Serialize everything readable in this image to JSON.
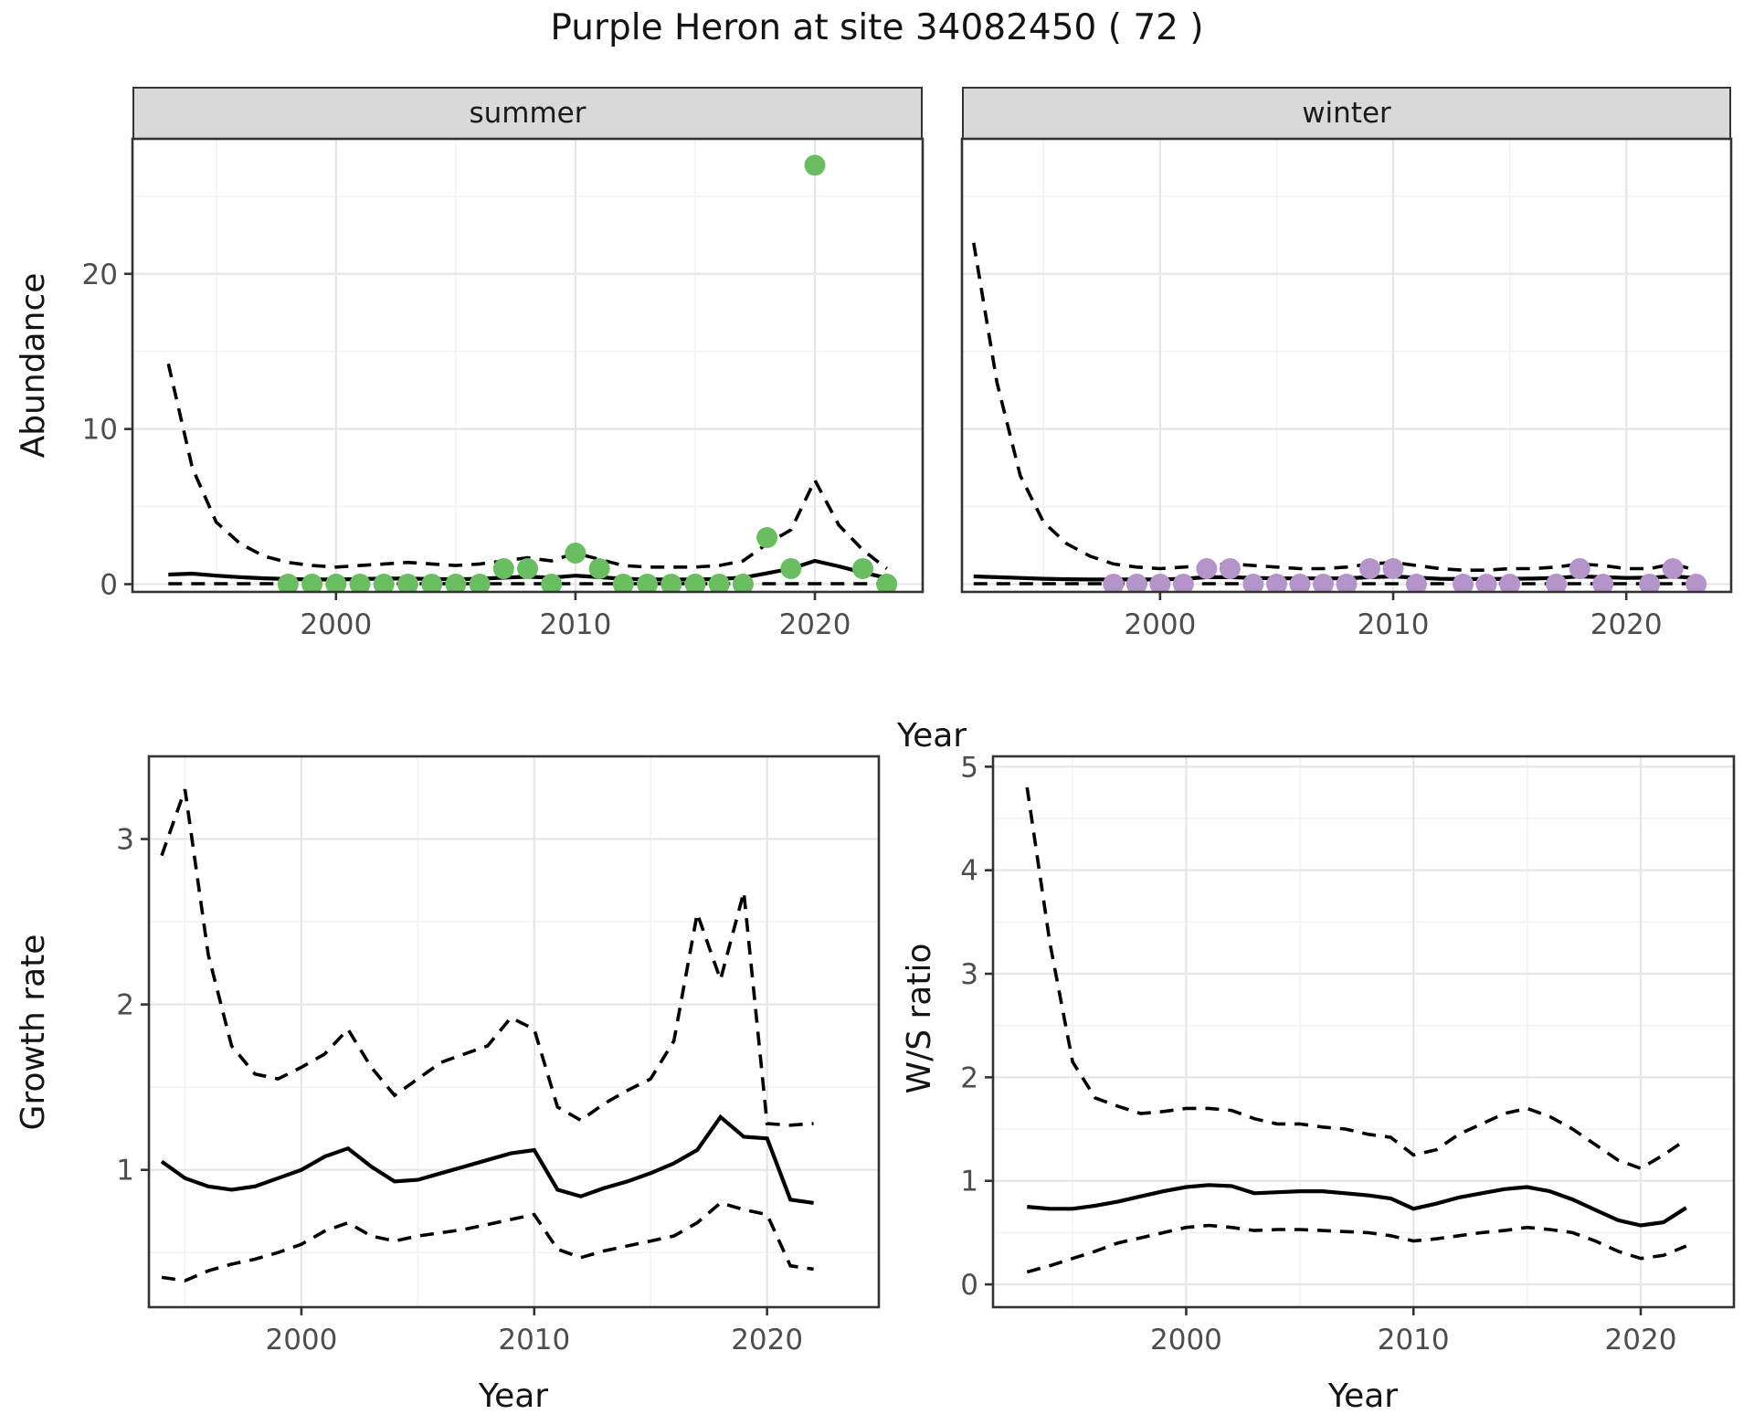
{
  "title": "Purple Heron at site 34082450 ( 72 )",
  "facets": {
    "summer": "summer",
    "winter": "winter"
  },
  "axis_titles": {
    "abundance": "Abundance",
    "growth": "Growth rate",
    "ws": "W/S ratio",
    "year": "Year"
  },
  "colors": {
    "summer_point": "#6abe61",
    "winter_point": "#b594ca",
    "line": "#000000",
    "strip_bg": "#d9d9d9",
    "panel_border": "#333333",
    "grid_major": "#e6e6e6",
    "grid_minor": "#f2f2f2",
    "tick_label": "#4d4d4d",
    "text": "#141414"
  },
  "chart_data": [
    {
      "type": "line",
      "title": "Purple Heron at site 34082450 ( 72 )",
      "xlabel": "Year",
      "ylabel": "Abundance",
      "legend_position": "none",
      "grid": true,
      "xlim": [
        1991.5,
        2024.5
      ],
      "ylim": [
        -0.5,
        28.7
      ],
      "xticks": [
        2000,
        2010,
        2020
      ],
      "xticks_minor": [
        1995,
        2005,
        2015
      ],
      "yticks": [
        0,
        10,
        20
      ],
      "yticks_minor": [
        5,
        15,
        25
      ],
      "series_styles": {
        "mean": "solid",
        "upper_ci": "dashed",
        "lower_ci": "dashed"
      },
      "facets": [
        {
          "label": "summer",
          "point_color": "#6abe61",
          "line_x": [
            1993,
            1994,
            1995,
            1996,
            1997,
            1998,
            1999,
            2000,
            2001,
            2002,
            2003,
            2004,
            2005,
            2006,
            2007,
            2008,
            2009,
            2010,
            2011,
            2012,
            2013,
            2014,
            2015,
            2016,
            2017,
            2018,
            2019,
            2020,
            2021,
            2022,
            2023
          ],
          "upper_ci": [
            14.2,
            7.5,
            4.0,
            2.6,
            1.8,
            1.4,
            1.2,
            1.1,
            1.2,
            1.3,
            1.4,
            1.3,
            1.2,
            1.3,
            1.5,
            1.7,
            1.5,
            2.0,
            1.6,
            1.2,
            1.1,
            1.1,
            1.1,
            1.2,
            1.5,
            2.6,
            3.5,
            6.7,
            3.8,
            2.2,
            1.0
          ],
          "mean": [
            0.62,
            0.68,
            0.55,
            0.45,
            0.38,
            0.33,
            0.3,
            0.3,
            0.33,
            0.36,
            0.36,
            0.33,
            0.32,
            0.35,
            0.42,
            0.48,
            0.42,
            0.55,
            0.45,
            0.35,
            0.3,
            0.3,
            0.3,
            0.33,
            0.42,
            0.7,
            1.0,
            1.5,
            1.15,
            0.75,
            0.4
          ],
          "lower_ci": [
            0.03,
            0.03,
            0.03,
            0.03,
            0.03,
            0.03,
            0.03,
            0.03,
            0.03,
            0.03,
            0.03,
            0.03,
            0.03,
            0.03,
            0.03,
            0.03,
            0.03,
            0.03,
            0.03,
            0.03,
            0.03,
            0.03,
            0.03,
            0.03,
            0.03,
            0.03,
            0.03,
            0.03,
            0.03,
            0.03,
            0.03
          ],
          "points_x": [
            1998,
            1999,
            2000,
            2001,
            2002,
            2003,
            2004,
            2005,
            2006,
            2007,
            2008,
            2009,
            2010,
            2011,
            2012,
            2013,
            2014,
            2015,
            2016,
            2017,
            2018,
            2019,
            2020,
            2022,
            2023
          ],
          "points_y": [
            0,
            0,
            0,
            0,
            0,
            0,
            0,
            0,
            0,
            1,
            1,
            0,
            2,
            1,
            0,
            0,
            0,
            0,
            0,
            0,
            3,
            1,
            27,
            1,
            0
          ]
        },
        {
          "label": "winter",
          "point_color": "#b594ca",
          "line_x": [
            1992,
            1993,
            1994,
            1995,
            1996,
            1997,
            1998,
            1999,
            2000,
            2001,
            2002,
            2003,
            2004,
            2005,
            2006,
            2007,
            2008,
            2009,
            2010,
            2011,
            2012,
            2013,
            2014,
            2015,
            2016,
            2017,
            2018,
            2019,
            2020,
            2021,
            2022,
            2023
          ],
          "upper_ci": [
            22.0,
            13.0,
            7.0,
            4.0,
            2.6,
            1.8,
            1.3,
            1.1,
            1.0,
            1.1,
            1.2,
            1.3,
            1.2,
            1.1,
            1.0,
            1.0,
            1.1,
            1.3,
            1.4,
            1.2,
            1.0,
            0.9,
            0.9,
            1.0,
            1.0,
            1.1,
            1.3,
            1.2,
            1.0,
            1.0,
            1.3,
            0.9
          ],
          "mean": [
            0.5,
            0.45,
            0.4,
            0.35,
            0.32,
            0.3,
            0.3,
            0.3,
            0.3,
            0.35,
            0.45,
            0.45,
            0.4,
            0.38,
            0.37,
            0.37,
            0.38,
            0.45,
            0.5,
            0.42,
            0.35,
            0.33,
            0.33,
            0.35,
            0.36,
            0.4,
            0.5,
            0.45,
            0.4,
            0.42,
            0.5,
            0.4
          ],
          "lower_ci": [
            0.03,
            0.03,
            0.03,
            0.03,
            0.03,
            0.03,
            0.03,
            0.03,
            0.03,
            0.03,
            0.03,
            0.03,
            0.03,
            0.03,
            0.03,
            0.03,
            0.03,
            0.03,
            0.03,
            0.03,
            0.03,
            0.03,
            0.03,
            0.03,
            0.03,
            0.03,
            0.03,
            0.03,
            0.03,
            0.03,
            0.03,
            0.03
          ],
          "points_x": [
            1998,
            1999,
            2000,
            2001,
            2002,
            2003,
            2004,
            2005,
            2006,
            2007,
            2008,
            2009,
            2010,
            2011,
            2013,
            2014,
            2015,
            2017,
            2018,
            2019,
            2021,
            2022,
            2023
          ],
          "points_y": [
            0,
            0,
            0,
            0,
            1,
            1,
            0,
            0,
            0,
            0,
            0,
            1,
            1,
            0,
            0,
            0,
            0,
            0,
            1,
            0,
            0,
            1,
            0
          ]
        }
      ]
    },
    {
      "type": "line",
      "xlabel": "Year",
      "ylabel": "Growth rate",
      "legend_position": "none",
      "grid": true,
      "xlim": [
        1993.45,
        2024.8
      ],
      "ylim": [
        0.17,
        3.5
      ],
      "xticks": [
        2000,
        2010,
        2020
      ],
      "xticks_minor": [
        1995,
        2005,
        2015
      ],
      "yticks": [
        1,
        2,
        3
      ],
      "yticks_minor": [
        0.5,
        1.5,
        2.5
      ],
      "x": [
        1994,
        1995,
        1996,
        1997,
        1998,
        1999,
        2000,
        2001,
        2002,
        2003,
        2004,
        2005,
        2006,
        2007,
        2008,
        2009,
        2010,
        2011,
        2012,
        2013,
        2014,
        2015,
        2016,
        2017,
        2018,
        2019,
        2020,
        2021,
        2022
      ],
      "series": [
        {
          "name": "upper_ci",
          "style": "dashed",
          "values": [
            2.9,
            3.3,
            2.3,
            1.75,
            1.58,
            1.55,
            1.62,
            1.7,
            1.85,
            1.62,
            1.45,
            1.55,
            1.65,
            1.7,
            1.75,
            1.92,
            1.85,
            1.38,
            1.3,
            1.4,
            1.48,
            1.55,
            1.78,
            2.55,
            2.15,
            2.68,
            1.28,
            1.27,
            1.28
          ]
        },
        {
          "name": "mean",
          "style": "solid",
          "values": [
            1.05,
            0.95,
            0.9,
            0.88,
            0.9,
            0.95,
            1.0,
            1.08,
            1.13,
            1.02,
            0.93,
            0.94,
            0.98,
            1.02,
            1.06,
            1.1,
            1.12,
            0.88,
            0.84,
            0.89,
            0.93,
            0.98,
            1.04,
            1.12,
            1.32,
            1.2,
            1.19,
            0.82,
            0.8
          ]
        },
        {
          "name": "lower_ci",
          "style": "dashed",
          "values": [
            0.35,
            0.33,
            0.39,
            0.43,
            0.46,
            0.5,
            0.55,
            0.63,
            0.68,
            0.6,
            0.57,
            0.6,
            0.62,
            0.64,
            0.67,
            0.7,
            0.73,
            0.52,
            0.47,
            0.51,
            0.54,
            0.57,
            0.6,
            0.68,
            0.8,
            0.76,
            0.73,
            0.42,
            0.4
          ]
        }
      ]
    },
    {
      "type": "line",
      "xlabel": "Year",
      "ylabel": "W/S ratio",
      "legend_position": "none",
      "grid": true,
      "xlim": [
        1991.5,
        2024.1
      ],
      "ylim": [
        -0.22,
        5.1
      ],
      "xticks": [
        2000,
        2010,
        2020
      ],
      "xticks_minor": [
        1995,
        2005,
        2015
      ],
      "yticks": [
        0,
        1,
        2,
        3,
        4,
        5
      ],
      "yticks_minor": [
        0.5,
        1.5,
        2.5,
        3.5,
        4.5
      ],
      "x": [
        1993,
        1994,
        1995,
        1996,
        1997,
        1998,
        1999,
        2000,
        2001,
        2002,
        2003,
        2004,
        2005,
        2006,
        2007,
        2008,
        2009,
        2010,
        2011,
        2012,
        2013,
        2014,
        2015,
        2016,
        2017,
        2018,
        2019,
        2020,
        2021,
        2022
      ],
      "series": [
        {
          "name": "upper_ci",
          "style": "dashed",
          "values": [
            4.8,
            3.3,
            2.15,
            1.8,
            1.72,
            1.65,
            1.67,
            1.7,
            1.7,
            1.68,
            1.6,
            1.55,
            1.55,
            1.52,
            1.5,
            1.45,
            1.42,
            1.25,
            1.3,
            1.45,
            1.55,
            1.65,
            1.7,
            1.62,
            1.5,
            1.35,
            1.2,
            1.12,
            1.25,
            1.4
          ]
        },
        {
          "name": "mean",
          "style": "solid",
          "values": [
            0.75,
            0.73,
            0.73,
            0.76,
            0.8,
            0.85,
            0.9,
            0.94,
            0.96,
            0.95,
            0.88,
            0.89,
            0.9,
            0.9,
            0.88,
            0.86,
            0.83,
            0.73,
            0.78,
            0.84,
            0.88,
            0.92,
            0.94,
            0.9,
            0.82,
            0.72,
            0.62,
            0.57,
            0.6,
            0.74
          ]
        },
        {
          "name": "lower_ci",
          "style": "dashed",
          "values": [
            0.12,
            0.18,
            0.25,
            0.32,
            0.4,
            0.45,
            0.5,
            0.55,
            0.57,
            0.55,
            0.52,
            0.53,
            0.53,
            0.52,
            0.51,
            0.5,
            0.47,
            0.42,
            0.44,
            0.47,
            0.5,
            0.52,
            0.55,
            0.53,
            0.5,
            0.42,
            0.32,
            0.25,
            0.28,
            0.37
          ]
        }
      ]
    }
  ]
}
